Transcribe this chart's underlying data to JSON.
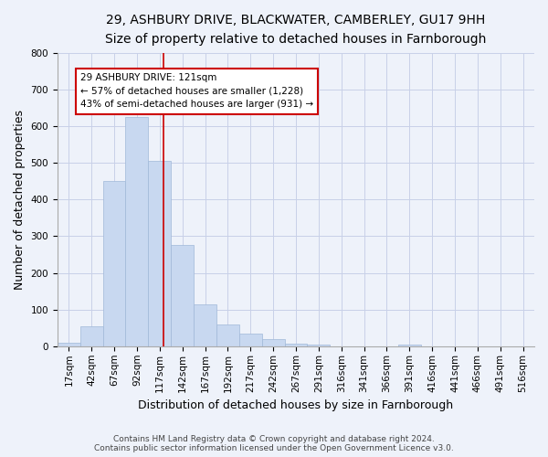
{
  "title_line1": "29, ASHBURY DRIVE, BLACKWATER, CAMBERLEY, GU17 9HH",
  "title_line2": "Size of property relative to detached houses in Farnborough",
  "xlabel": "Distribution of detached houses by size in Farnborough",
  "ylabel": "Number of detached properties",
  "bar_color": "#c8d8f0",
  "bar_edge_color": "#a0b8d8",
  "categories": [
    "17sqm",
    "42sqm",
    "67sqm",
    "92sqm",
    "117sqm",
    "142sqm",
    "167sqm",
    "192sqm",
    "217sqm",
    "242sqm",
    "267sqm",
    "291sqm",
    "316sqm",
    "341sqm",
    "366sqm",
    "391sqm",
    "416sqm",
    "441sqm",
    "466sqm",
    "491sqm",
    "516sqm"
  ],
  "values": [
    10,
    55,
    450,
    625,
    505,
    275,
    115,
    60,
    35,
    20,
    8,
    5,
    0,
    0,
    0,
    5,
    0,
    0,
    0,
    0,
    0
  ],
  "ylim": [
    0,
    800
  ],
  "yticks": [
    0,
    100,
    200,
    300,
    400,
    500,
    600,
    700,
    800
  ],
  "property_line_x": 4.16,
  "annotation_text": "29 ASHBURY DRIVE: 121sqm\n← 57% of detached houses are smaller (1,228)\n43% of semi-detached houses are larger (931) →",
  "annotation_box_color": "#ffffff",
  "annotation_box_edge": "#cc0000",
  "red_line_color": "#cc0000",
  "footer_line1": "Contains HM Land Registry data © Crown copyright and database right 2024.",
  "footer_line2": "Contains public sector information licensed under the Open Government Licence v3.0.",
  "background_color": "#eef2fa",
  "plot_background": "#eef2fa",
  "grid_color": "#c8d0e8",
  "title_fontsize": 10,
  "subtitle_fontsize": 9,
  "axis_label_fontsize": 9,
  "tick_fontsize": 7.5,
  "annotation_fontsize": 7.5,
  "footer_fontsize": 6.5
}
